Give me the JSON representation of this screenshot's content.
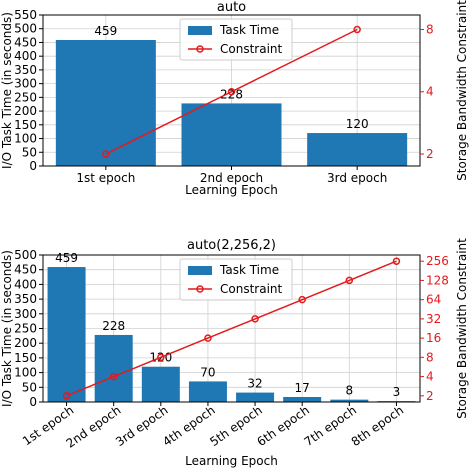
{
  "colors": {
    "bar": "#1f77b4",
    "constraint": "#e41a1c",
    "grid": "#d0d0d0",
    "axis": "#000000"
  },
  "chart_data": [
    {
      "type": "bar",
      "title": "auto",
      "xlabel": "Learning Epoch",
      "ylabel": "I/O Task Time (in seconds)",
      "y2label": "Storage Bandwidth Constraint",
      "categories": [
        "1st epoch",
        "2nd epoch",
        "3rd epoch"
      ],
      "series": [
        {
          "name": "Task Time",
          "type": "bar",
          "axis": "left",
          "values": [
            459,
            228,
            120
          ]
        },
        {
          "name": "Constraint",
          "type": "line",
          "axis": "right",
          "values": [
            2,
            4,
            8
          ]
        }
      ],
      "data_labels": [
        "459",
        "228",
        "120"
      ],
      "ylim": [
        0,
        550
      ],
      "yticks": [
        0,
        50,
        100,
        150,
        200,
        250,
        300,
        350,
        400,
        450,
        500,
        550
      ],
      "y2scale": "log2",
      "y2lim": [
        1.75,
        9.4
      ],
      "y2ticks": [
        2,
        4,
        8
      ],
      "y2ticklabels": [
        "2",
        "4",
        "8"
      ],
      "grid": true,
      "legend_position": "top-center"
    },
    {
      "type": "bar",
      "title": "auto(2,256,2)",
      "xlabel": "Learning Epoch",
      "ylabel": "I/O Task Time (in seconds)",
      "y2label": "Storage Bandwidth Constraint",
      "categories": [
        "1st epoch",
        "2nd epoch",
        "3rd epoch",
        "4th epoch",
        "5th epoch",
        "6th epoch",
        "7th epoch",
        "8th epoch"
      ],
      "series": [
        {
          "name": "Task Time",
          "type": "bar",
          "axis": "left",
          "values": [
            459,
            228,
            120,
            70,
            32,
            17,
            8,
            3
          ]
        },
        {
          "name": "Constraint",
          "type": "line",
          "axis": "right",
          "values": [
            2,
            4,
            8,
            16,
            32,
            64,
            128,
            256
          ]
        }
      ],
      "data_labels": [
        "459",
        "228",
        "120",
        "70",
        "32",
        "17",
        "8",
        "3"
      ],
      "ylim": [
        0,
        500
      ],
      "yticks": [
        0,
        50,
        100,
        150,
        200,
        250,
        300,
        350,
        400,
        450,
        500
      ],
      "y2scale": "log2",
      "y2lim": [
        1.6,
        320
      ],
      "y2ticks": [
        2,
        4,
        8,
        16,
        32,
        64,
        128,
        256
      ],
      "y2ticklabels": [
        "2",
        "4",
        "8",
        "16",
        "32",
        "64",
        "128",
        "256"
      ],
      "grid": true,
      "legend_position": "top-center"
    }
  ]
}
